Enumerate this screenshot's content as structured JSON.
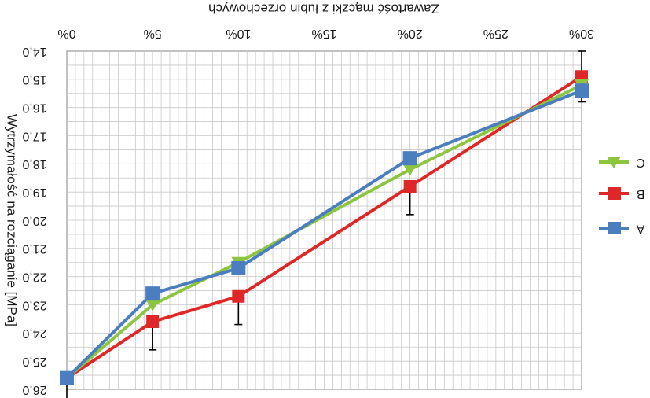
{
  "chart_data": {
    "type": "line",
    "title": "Zawartość mączki z łubin orzechowych",
    "xlabel": "Zawartość mączki z łubin orzechowych",
    "ylabel": "Wytrzymałość na rozciąganie [MPa]",
    "orientation": "rotated 180 degrees",
    "categories": [
      "0%",
      "5%",
      "10%",
      "15%",
      "20%",
      "25%",
      "30%"
    ],
    "x": [
      0,
      5,
      10,
      20,
      30
    ],
    "xlim": [
      0,
      30
    ],
    "xticks": [
      0,
      5,
      10,
      15,
      20,
      25,
      30
    ],
    "ylim": [
      14.0,
      26.0
    ],
    "yticks": [
      14.0,
      15.0,
      16.0,
      17.0,
      18.0,
      19.0,
      20.0,
      21.0,
      22.0,
      23.0,
      24.0,
      25.0,
      26.0
    ],
    "ytick_labels": [
      "14,0",
      "15,0",
      "16,0",
      "17,0",
      "18,0",
      "19,0",
      "20,0",
      "21,0",
      "22,0",
      "23,0",
      "24,0",
      "25,0",
      "26,0"
    ],
    "grid": true,
    "legend_position": "right",
    "series": [
      {
        "name": "C",
        "color": "#8cc63f",
        "marker": "triangle-down",
        "values": [
          25.6,
          23.0,
          21.5,
          18.2,
          15.2
        ]
      },
      {
        "name": "B",
        "color": "#e02727",
        "marker": "square",
        "values": [
          25.6,
          23.6,
          22.7,
          18.8,
          14.9
        ]
      },
      {
        "name": "A",
        "color": "#4a7ebf",
        "marker": "square",
        "values": [
          25.6,
          22.6,
          21.7,
          17.8,
          15.4
        ]
      }
    ],
    "error_bars": [
      {
        "series": "B",
        "x": 0,
        "low": 25.6,
        "high": 26.5
      },
      {
        "series": "B",
        "x": 5,
        "low": 23.6,
        "high": 24.6
      },
      {
        "series": "B",
        "x": 10,
        "low": 22.7,
        "high": 23.7
      },
      {
        "series": "B",
        "x": 20,
        "low": 18.8,
        "high": 19.8
      },
      {
        "series": "B",
        "x": 30,
        "low": 14.0,
        "high": 14.9
      },
      {
        "series": "A",
        "x": 30,
        "low": 15.4,
        "high": 15.8
      }
    ]
  }
}
